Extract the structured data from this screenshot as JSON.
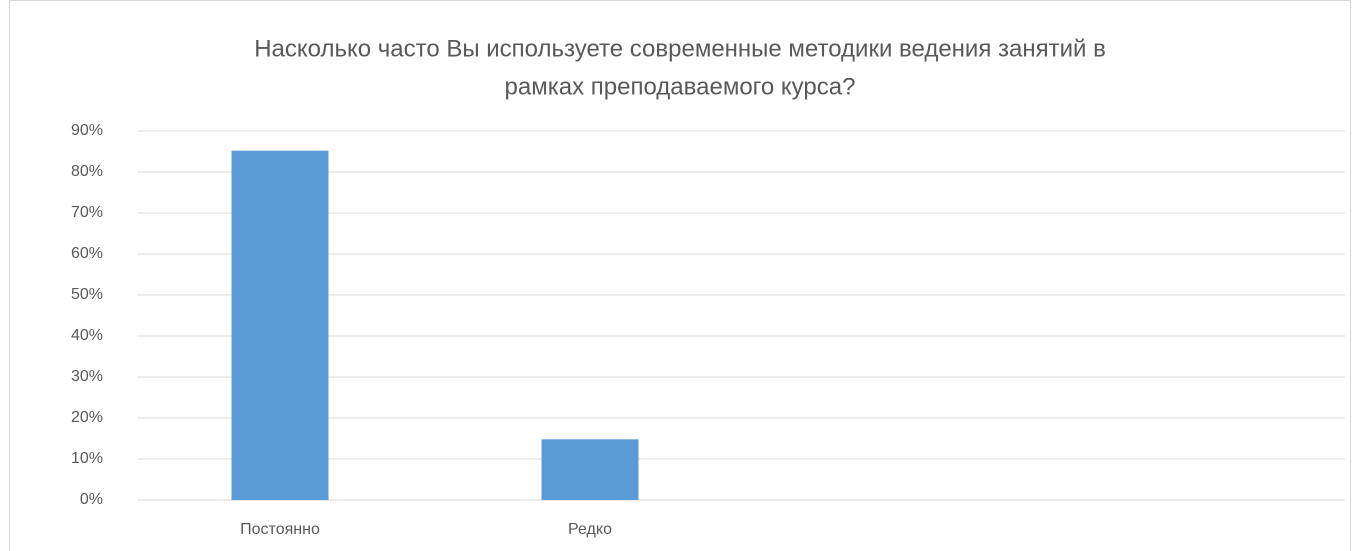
{
  "chart_data": {
    "type": "bar",
    "title": [
      "Насколько часто Вы используете современные методики ведения занятий в",
      "рамках преподаваемого курса?"
    ],
    "categories": [
      "Постоянно",
      "Редко",
      null,
      null
    ],
    "values": [
      85.2,
      14.8,
      null,
      null
    ],
    "color": "#5b9bd5",
    "ylim": [
      0,
      90
    ],
    "yticks": [
      {
        "value": 0,
        "label": "0%"
      },
      {
        "value": 10,
        "label": "10%"
      },
      {
        "value": 20,
        "label": "20%"
      },
      {
        "value": 30,
        "label": "30%"
      },
      {
        "value": 40,
        "label": "40%"
      },
      {
        "value": 50,
        "label": "50%"
      },
      {
        "value": 60,
        "label": "60%"
      },
      {
        "value": 70,
        "label": "70%"
      },
      {
        "value": 80,
        "label": "80%"
      },
      {
        "value": 90,
        "label": "90%"
      }
    ],
    "grid": true
  }
}
